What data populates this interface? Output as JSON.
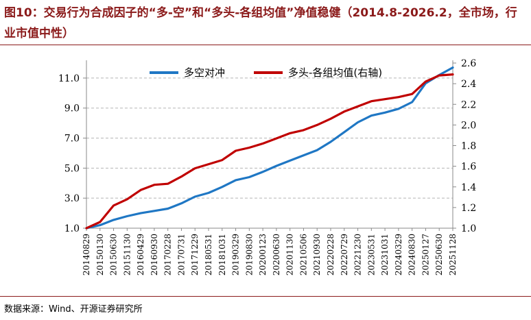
{
  "title": "图10：交易行为合成因子的“多-空”和“多头-各组均值”净值稳健（2014.8-2026.2，全市场，行业市值中性）",
  "source": "数据来源：Wind、开源证券研究所",
  "chart_data": {
    "type": "line",
    "title": "",
    "x": [
      "20140829",
      "20150130",
      "20150630",
      "20151130",
      "20160429",
      "20160930",
      "20170228",
      "20170731",
      "20171229",
      "20180531",
      "20181031",
      "20190329",
      "20190830",
      "20200123",
      "20200630",
      "20201130",
      "20210506",
      "20210930",
      "20220228",
      "20220729",
      "20221230",
      "20230531",
      "20231031",
      "20240329",
      "20240830",
      "20250127",
      "20250630",
      "20251128"
    ],
    "x_tick_labels": [
      "20140829",
      "20150130",
      "20150630",
      "20151130",
      "20160429",
      "20160930",
      "20170228",
      "20170731",
      "20171229",
      "20180531",
      "20181031",
      "20190329",
      "20190830",
      "20200123",
      "20200630",
      "20201130",
      "20210506",
      "20210930",
      "20220228",
      "20220729",
      "20221230",
      "20230531",
      "20231031",
      "20240329",
      "20240830",
      "20250127",
      "20250630",
      "20251128"
    ],
    "left_axis": {
      "ylim": [
        1.0,
        12.0
      ],
      "ticks": [
        "1.0",
        "3.0",
        "5.0",
        "7.0",
        "9.0",
        "11.0"
      ]
    },
    "right_axis": {
      "ylim": [
        1.0,
        2.6
      ],
      "ticks": [
        "1.0",
        "1.2",
        "1.4",
        "1.6",
        "1.8",
        "2.0",
        "2.2",
        "2.4",
        "2.6"
      ]
    },
    "grid": "horizontal-dashed",
    "legend_position": "top-center",
    "series": [
      {
        "name": "多空对冲",
        "axis": "left",
        "color": "#1f77c4",
        "values": [
          1.0,
          1.2,
          1.55,
          1.8,
          2.0,
          2.15,
          2.3,
          2.65,
          3.1,
          3.35,
          3.75,
          4.2,
          4.4,
          4.75,
          5.15,
          5.5,
          5.85,
          6.2,
          6.75,
          7.4,
          8.05,
          8.5,
          8.7,
          8.95,
          9.4,
          10.65,
          11.2,
          11.7
        ]
      },
      {
        "name": "多头-各组均值(右轴)",
        "axis": "right",
        "color": "#c00000",
        "values": [
          1.0,
          1.06,
          1.22,
          1.28,
          1.37,
          1.42,
          1.43,
          1.5,
          1.58,
          1.62,
          1.66,
          1.75,
          1.78,
          1.82,
          1.87,
          1.92,
          1.95,
          2.0,
          2.06,
          2.13,
          2.18,
          2.23,
          2.25,
          2.27,
          2.3,
          2.42,
          2.48,
          2.49
        ]
      }
    ]
  }
}
